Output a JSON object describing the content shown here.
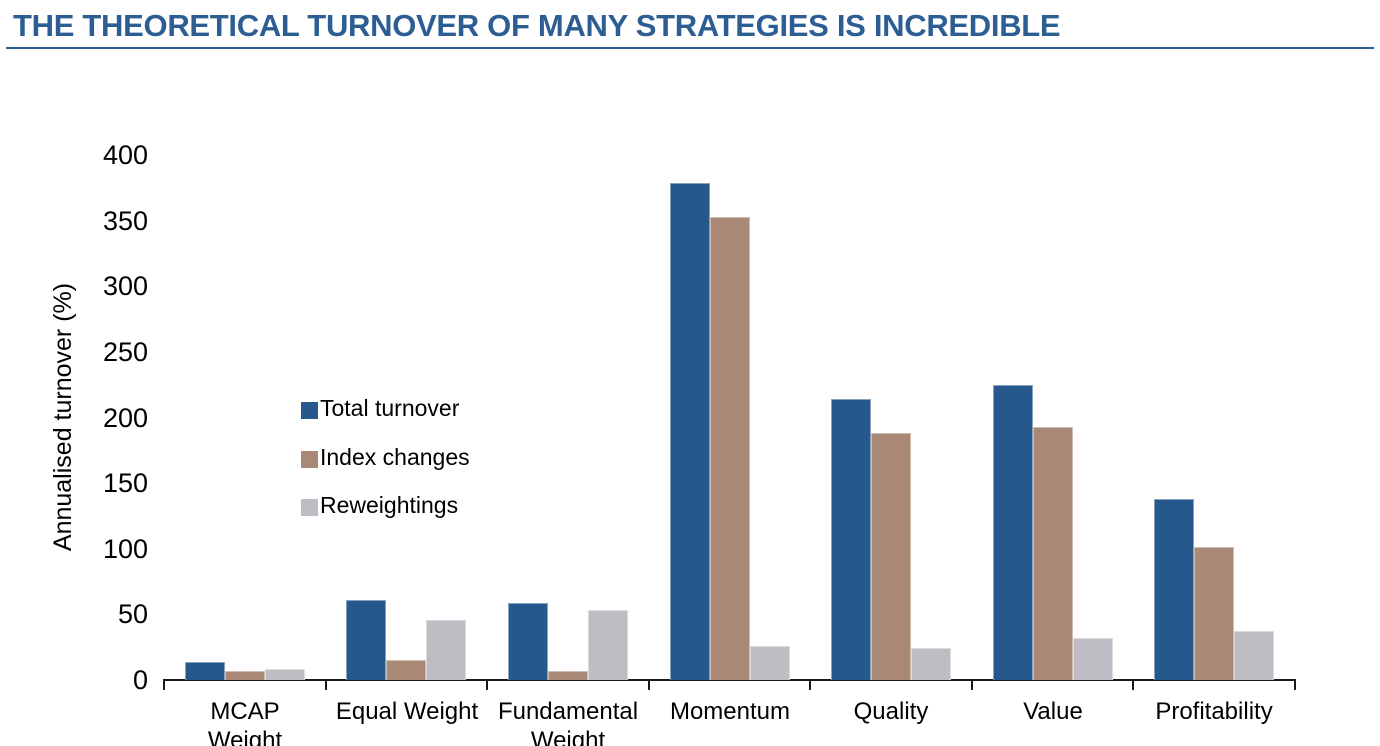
{
  "page": {
    "title": "THE THEORETICAL TURNOVER OF MANY STRATEGIES IS INCREDIBLE"
  },
  "chart_data": {
    "type": "bar",
    "title": "THE THEORETICAL TURNOVER OF MANY STRATEGIES IS INCREDIBLE",
    "xlabel": "",
    "ylabel": "Annualised turnover (%)",
    "ylim": [
      0,
      400
    ],
    "ytick_step": 50,
    "yticks": [
      "400",
      "350",
      "300",
      "250",
      "200",
      "150",
      "100",
      "50",
      "0"
    ],
    "grid": false,
    "legend_position": "inside-plot-left",
    "categories": [
      "MCAP Weight",
      "Equal Weight",
      "Fundamental Weight",
      "Momentum",
      "Quality",
      "Value",
      "Profitability"
    ],
    "categories_display": [
      "MCAP\nWeight",
      "Equal Weight",
      "Fundamental\nWeight",
      "Momentum",
      "Quality",
      "Value",
      "Profitability"
    ],
    "series": [
      {
        "name": "Total turnover",
        "color": "#27588C",
        "values": [
          14,
          61,
          59,
          379,
          214,
          225,
          138
        ]
      },
      {
        "name": "Index changes",
        "color": "#A98975",
        "values": [
          7,
          15,
          7,
          353,
          188,
          193,
          101
        ]
      },
      {
        "name": "Reweightings",
        "color": "#BDBDC3",
        "values": [
          8,
          46,
          53,
          26,
          24,
          32,
          37
        ]
      }
    ]
  },
  "colors": {
    "title": "#2D5E93",
    "axis": "#1a1a1a",
    "text": "#000000"
  }
}
